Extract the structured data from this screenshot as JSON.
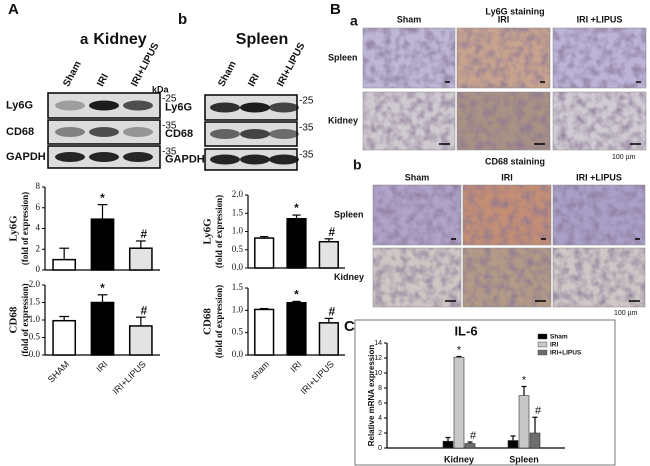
{
  "panel_labels": {
    "A": "A",
    "A_a": "a",
    "A_b": "b",
    "B": "B",
    "B_a": "a",
    "B_b": "b",
    "C": "C"
  },
  "blots": [
    {
      "title": "Kidney",
      "lanes": [
        "Sham",
        "IRI",
        "IRI+LIPUS"
      ],
      "unit": "kDa",
      "rows": [
        {
          "label": "Ly6G",
          "marker": "-25"
        },
        {
          "label": "CD68",
          "marker": "-35"
        },
        {
          "label": "GAPDH",
          "marker": "-35"
        }
      ]
    },
    {
      "title": "Spleen",
      "lanes": [
        "Sham",
        "IRI",
        "IRI+LIPUS"
      ],
      "rows": [
        {
          "label": "Ly6G",
          "marker": "-25"
        },
        {
          "label": "CD68",
          "marker": "-35"
        },
        {
          "label": "GAPDH",
          "marker": "-35"
        }
      ]
    }
  ],
  "staining": [
    {
      "title": "Ly6G  staining",
      "columns": [
        "Sham",
        "IRI",
        "IRI +LIPUS"
      ],
      "rows": [
        "Spleen",
        "Kidney"
      ],
      "scale_label": "100 µm"
    },
    {
      "title": "CD68  staining",
      "columns": [
        "Sham",
        "IRI",
        "IRI +LIPUS"
      ],
      "rows": [
        "Spleen",
        "Kidney"
      ],
      "scale_label": "100 µm"
    }
  ],
  "chart_data": [
    {
      "type": "bar",
      "ylabel": [
        "Ly6G",
        "(fold of expression)"
      ],
      "categories": [
        null,
        null,
        null
      ],
      "values": [
        1.0,
        4.9,
        2.1
      ],
      "errors": [
        1.1,
        1.4,
        0.7
      ],
      "bar_labels": [
        null,
        "*",
        "#"
      ],
      "colors": [
        "#ffffff",
        "#000000",
        "#e3e3e3"
      ],
      "ylim": [
        0,
        8
      ],
      "yticks": [
        0,
        2,
        4,
        6,
        8
      ]
    },
    {
      "type": "bar",
      "ylabel": [
        "CD68",
        "(fold of expression)"
      ],
      "categories": [
        "SHAM",
        "IRI",
        "IRI+LIPUS"
      ],
      "values": [
        0.98,
        1.5,
        0.83
      ],
      "errors": [
        0.12,
        0.22,
        0.25
      ],
      "bar_labels": [
        null,
        "*",
        "#"
      ],
      "colors": [
        "#ffffff",
        "#000000",
        "#e3e3e3"
      ],
      "ylim": [
        0,
        2
      ],
      "yticks": [
        {
          "value": 0,
          "label": "0.0"
        },
        0.5,
        {
          "value": 1,
          "label": "1.0"
        },
        1.5,
        {
          "value": 2,
          "label": "2.0"
        }
      ]
    },
    {
      "type": "bar",
      "ylabel": [
        "Ly6G",
        "(fold of expression)"
      ],
      "categories": [
        null,
        null,
        null
      ],
      "values": [
        0.82,
        1.35,
        0.72
      ],
      "errors": [
        0.04,
        0.1,
        0.08
      ],
      "bar_labels": [
        null,
        "*",
        "#"
      ],
      "colors": [
        "#ffffff",
        "#000000",
        "#e3e3e3"
      ],
      "ylim": [
        0,
        2
      ],
      "yticks": [
        {
          "value": 0,
          "label": "0.0"
        },
        0.5,
        {
          "value": 1,
          "label": "1.0"
        },
        1.5,
        {
          "value": 2,
          "label": "2.0"
        }
      ]
    },
    {
      "type": "bar",
      "ylabel": [
        "CD68",
        "(fold of expression)"
      ],
      "categories": [
        "sham",
        "IRI",
        "IRI+LIPUS"
      ],
      "values": [
        1.02,
        1.17,
        0.72
      ],
      "errors": [
        0.02,
        0.03,
        0.1
      ],
      "bar_labels": [
        null,
        "*",
        "#"
      ],
      "colors": [
        "#ffffff",
        "#000000",
        "#e3e3e3"
      ],
      "ylim": [
        0,
        1.5
      ],
      "yticks": [
        {
          "value": 0,
          "label": "0.0"
        },
        0.5,
        {
          "value": 1,
          "label": "1.0"
        },
        1.5
      ]
    },
    {
      "type": "grouped_bar",
      "title": "IL-6",
      "ylabel": "Relative mRNA expression",
      "categories": [
        "Kidney",
        "Spleen"
      ],
      "series": [
        {
          "name": "Sham",
          "color": "#000000",
          "values": [
            0.9,
            1.0
          ],
          "errors": [
            0.5,
            0.6
          ],
          "labels": [
            null,
            null
          ]
        },
        {
          "name": "IRI",
          "color": "#c8c8c8",
          "values": [
            12.1,
            7.0
          ],
          "errors": [
            0.1,
            1.2
          ],
          "labels": [
            "*",
            "*"
          ]
        },
        {
          "name": "IRI+LIPUS",
          "color": "#6e6e6e",
          "values": [
            0.6,
            2.0
          ],
          "errors": [
            0.2,
            2.1
          ],
          "labels": [
            "#",
            "#"
          ]
        }
      ],
      "ylim": [
        0,
        14
      ],
      "yticks": [
        0,
        2,
        4,
        6,
        8,
        10,
        12,
        14
      ],
      "legend": "upper right"
    }
  ]
}
